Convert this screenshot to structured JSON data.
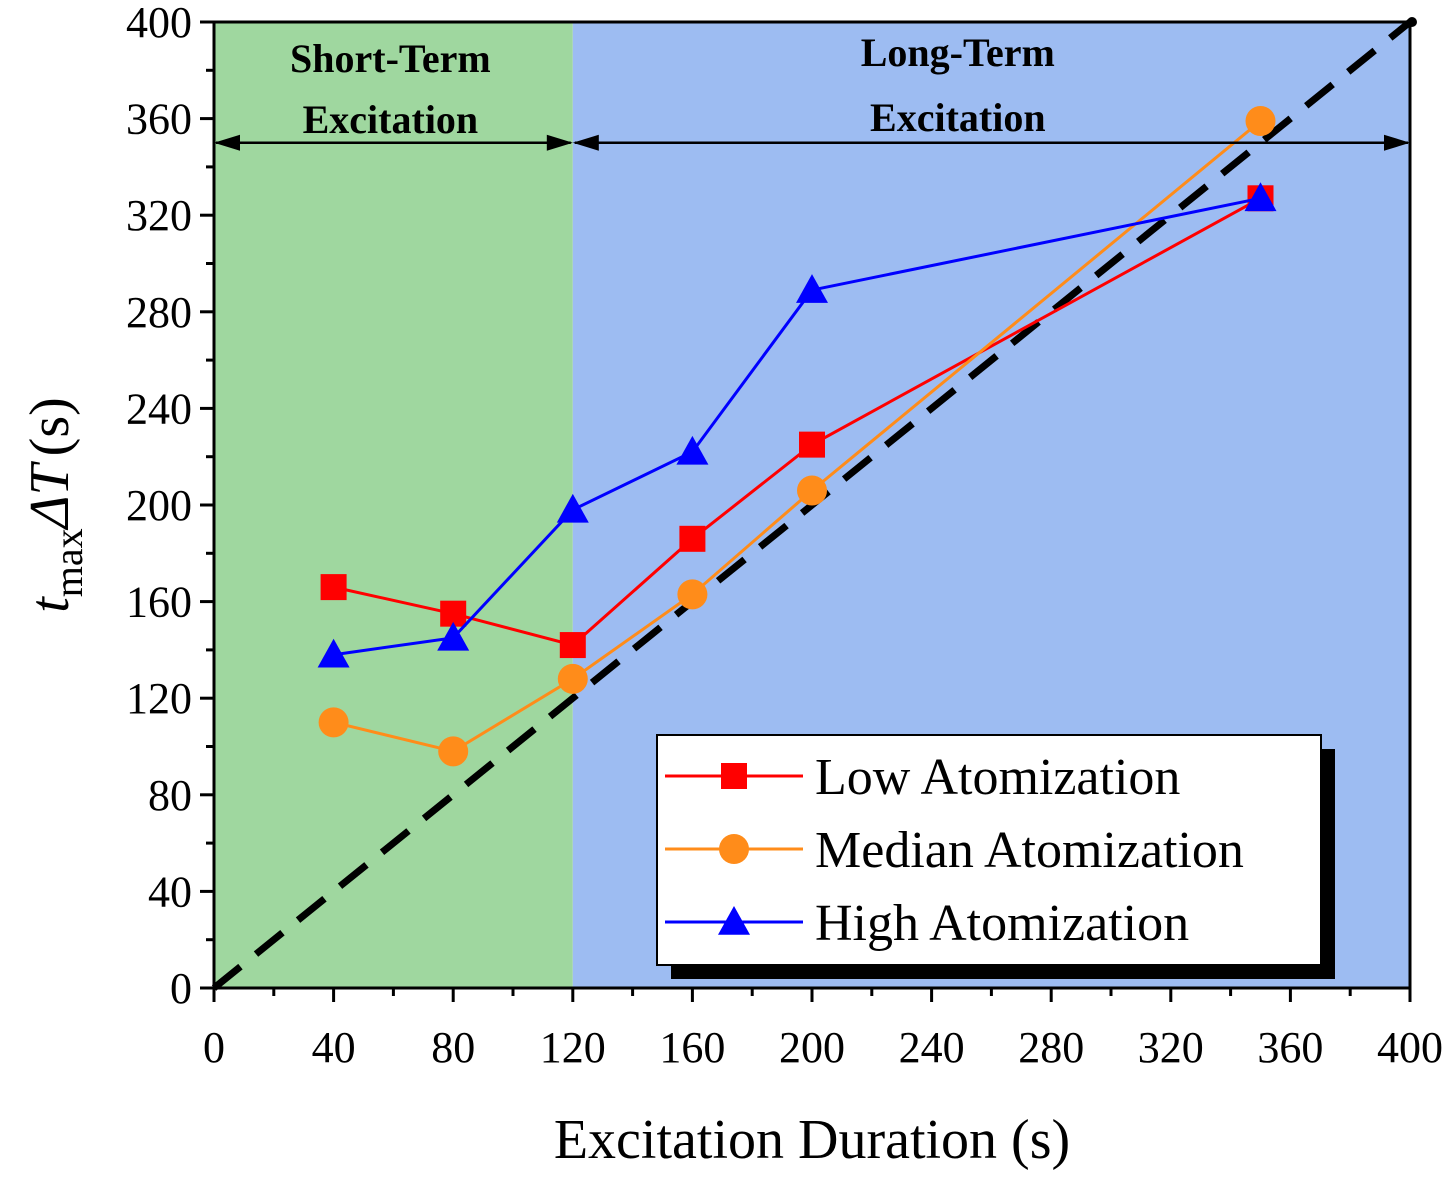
{
  "chart_data": {
    "type": "line",
    "title": "",
    "xlabel": "Excitation Duration (s)",
    "ylabel": {
      "var": "t",
      "subscript": "max",
      "delta": "ΔT",
      "units": "(s)"
    },
    "xlim": [
      0,
      400
    ],
    "ylim": [
      0,
      400
    ],
    "x_ticks": [
      0,
      40,
      80,
      120,
      160,
      200,
      240,
      280,
      320,
      360,
      400
    ],
    "y_ticks": [
      0,
      40,
      80,
      120,
      160,
      200,
      240,
      280,
      320,
      360,
      400
    ],
    "x_tick_labels": [
      "0",
      "40",
      "80",
      "120",
      "160",
      "200",
      "240",
      "280",
      "320",
      "360",
      "400"
    ],
    "y_tick_labels": [
      "0",
      "40",
      "80",
      "120",
      "160",
      "200",
      "240",
      "280",
      "320",
      "360",
      "400"
    ],
    "grid": false,
    "legend_position": "bottom-right",
    "regions": [
      {
        "name": "short-term",
        "x_range": [
          0,
          120
        ],
        "label_line1": "Short-Term",
        "label_line2": "Excitation",
        "color": "#9fd79f"
      },
      {
        "name": "long-term",
        "x_range": [
          120,
          400
        ],
        "label_line1": "Long-Term",
        "label_line2": "Excitation",
        "color": "#9dbcf2"
      }
    ],
    "region_arrow_y": 350,
    "reference_line": {
      "name": "y = x",
      "x": [
        0,
        400
      ],
      "y": [
        0,
        400
      ],
      "style": "dashed",
      "color": "#000000"
    },
    "series": [
      {
        "name": "Low Atomization",
        "marker": "square",
        "color": "#ff0000",
        "x": [
          40,
          80,
          120,
          160,
          200,
          350
        ],
        "values": [
          166,
          155,
          142,
          186,
          225,
          327
        ]
      },
      {
        "name": "Median Atomization",
        "marker": "circle",
        "color": "#ff8c1a",
        "x": [
          40,
          80,
          120,
          160,
          200,
          350
        ],
        "values": [
          110,
          98,
          128,
          163,
          206,
          359
        ]
      },
      {
        "name": "High Atomization",
        "marker": "triangle",
        "color": "#0000ff",
        "x": [
          40,
          80,
          120,
          160,
          200,
          350
        ],
        "values": [
          138,
          145,
          198,
          222,
          289,
          327
        ]
      }
    ]
  }
}
